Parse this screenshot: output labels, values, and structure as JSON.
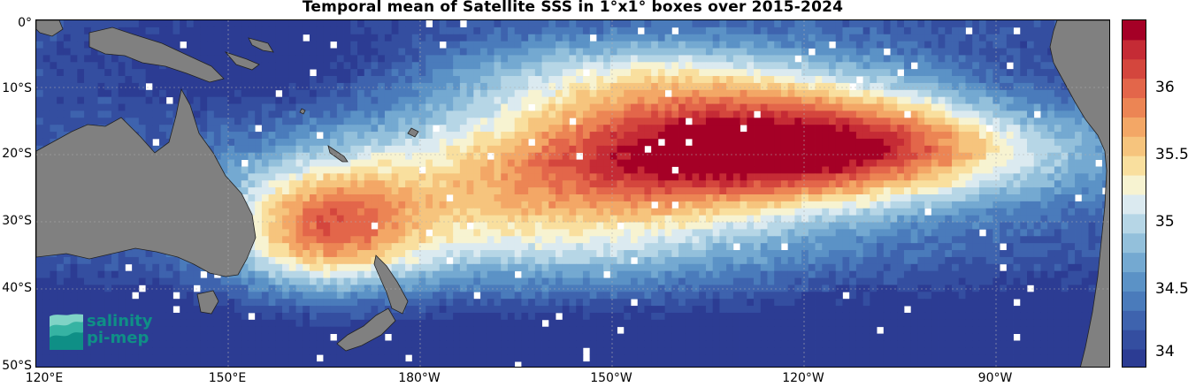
{
  "title": "Temporal mean of Satellite SSS in 1°x1° boxes over 2015-2024",
  "axes": {
    "lat_labels": [
      "0°",
      "10°S",
      "20°S",
      "30°S",
      "40°S",
      "50°S"
    ],
    "lon_labels": [
      "120°E",
      "150°E",
      "180°W",
      "150°W",
      "120°W",
      "90°W"
    ]
  },
  "colorbar": {
    "min": 33.9,
    "max": 36.5,
    "tick_labels": [
      "36",
      "35.5",
      "35",
      "34.5",
      "34"
    ],
    "colors": [
      "#2c3c93",
      "#344ea0",
      "#3e63ae",
      "#4a7bbb",
      "#5b92c6",
      "#74a9d1",
      "#93c0db",
      "#b6d6e6",
      "#dbeaf0",
      "#f7f3d1",
      "#f9df9e",
      "#f6c47d",
      "#f3a766",
      "#ec8554",
      "#e3664a",
      "#d4463d",
      "#c52b35",
      "#a50026"
    ]
  },
  "logo": {
    "line1": "salinity",
    "line2": "pi-mep"
  },
  "colors": {
    "land": "#808080",
    "missing": "#ffffff",
    "accent": "#0f8f86"
  }
}
